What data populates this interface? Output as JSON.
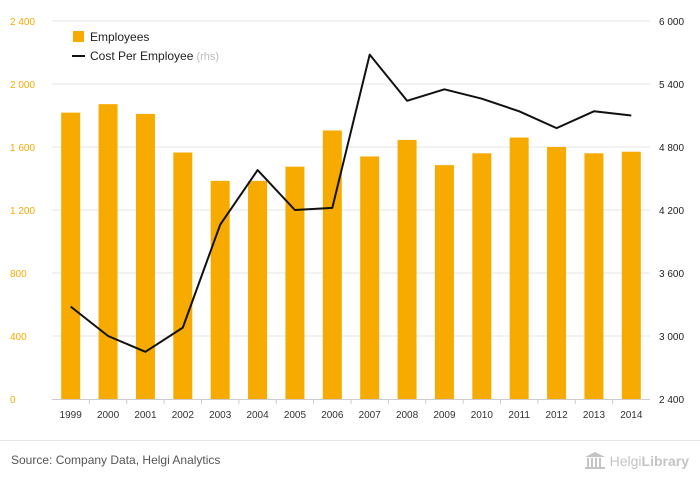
{
  "chart_data": {
    "type": "bar+line",
    "categories": [
      "1999",
      "2000",
      "2001",
      "2002",
      "2003",
      "2004",
      "2005",
      "2006",
      "2007",
      "2008",
      "2009",
      "2010",
      "2011",
      "2012",
      "2013",
      "2014"
    ],
    "series": [
      {
        "name": "Employees",
        "type": "bar",
        "axis": "left",
        "values": [
          1818,
          1872,
          1810,
          1565,
          1385,
          1385,
          1475,
          1705,
          1540,
          1645,
          1485,
          1560,
          1660,
          1600,
          1560,
          1570
        ]
      },
      {
        "name": "Cost Per Employee",
        "type": "line",
        "axis": "right",
        "values": [
          3280,
          3000,
          2850,
          3080,
          4060,
          4580,
          4200,
          4220,
          5680,
          5240,
          5350,
          5260,
          5140,
          4980,
          5140,
          5100
        ]
      }
    ],
    "y_left": {
      "range": [
        0,
        2400
      ],
      "ticks": [
        "0",
        "400",
        "800",
        "1 200",
        "1 600",
        "2 000",
        "2 400"
      ],
      "tick_values": [
        0,
        400,
        800,
        1200,
        1600,
        2000,
        2400
      ]
    },
    "y_right": {
      "range": [
        2400,
        6000
      ],
      "ticks": [
        "2 400",
        "3 000",
        "3 600",
        "4 200",
        "4 800",
        "5 400",
        "6 000"
      ],
      "tick_values": [
        2400,
        3000,
        3600,
        4200,
        4800,
        5400,
        6000
      ]
    },
    "legend": {
      "placement": "top-left",
      "items": [
        {
          "label": "Employees",
          "suffix": ""
        },
        {
          "label": "Cost Per Employee",
          "suffix": " (rhs)"
        }
      ]
    },
    "grid": true,
    "colors": {
      "bar": "#f7ab00",
      "line": "#111111",
      "left_axis_text": "#f7ab00",
      "right_axis_text": "#222222",
      "grid": "#e5e5e5"
    }
  },
  "footer": {
    "source": "Source: Company Data, Helgi Analytics",
    "logo_part1": "Helgi",
    "logo_part2": "Library"
  }
}
